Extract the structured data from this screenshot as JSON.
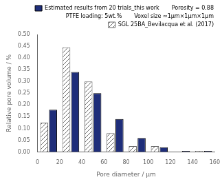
{
  "chart_data": {
    "type": "bar",
    "x": [
      10,
      30,
      50,
      70,
      90,
      110,
      130,
      150
    ],
    "series": [
      {
        "name": "SGL 25BA_Bevilacqua et al. (2017)",
        "color": "#666666",
        "values": [
          0.125,
          0.445,
          0.3,
          0.08,
          0.025,
          0.025,
          0.0,
          0.005
        ]
      },
      {
        "name": "Estimated results from 20 trials_this work",
        "color": "#1f2e7a",
        "values": [
          0.18,
          0.34,
          0.25,
          0.14,
          0.06,
          0.02,
          0.005,
          0.005
        ]
      }
    ],
    "annotations": [
      "Porosity = 0.88",
      "PTFE loading: 5wt.%",
      "Voxel size ≈1μm×1μm×1μm"
    ],
    "xlabel": "Pore diameter / μm",
    "ylabel": "Relative pore volume / %",
    "xlim": [
      0,
      160
    ],
    "xticks": [
      0,
      20,
      40,
      60,
      80,
      100,
      120,
      140,
      160
    ],
    "ylim": [
      0,
      0.5
    ],
    "yticks": [
      {
        "value": 0,
        "label": "0.00"
      },
      0.05,
      {
        "value": 0.1,
        "label": "0.10"
      },
      0.15,
      {
        "value": 0.2,
        "label": "0.20"
      },
      0.25,
      {
        "value": 0.3,
        "label": "0.30"
      },
      0.35,
      {
        "value": 0.4,
        "label": "0.40"
      },
      0.45,
      {
        "value": 0.5,
        "label": "0.50"
      }
    ],
    "grid": false,
    "legend": "upper right"
  }
}
